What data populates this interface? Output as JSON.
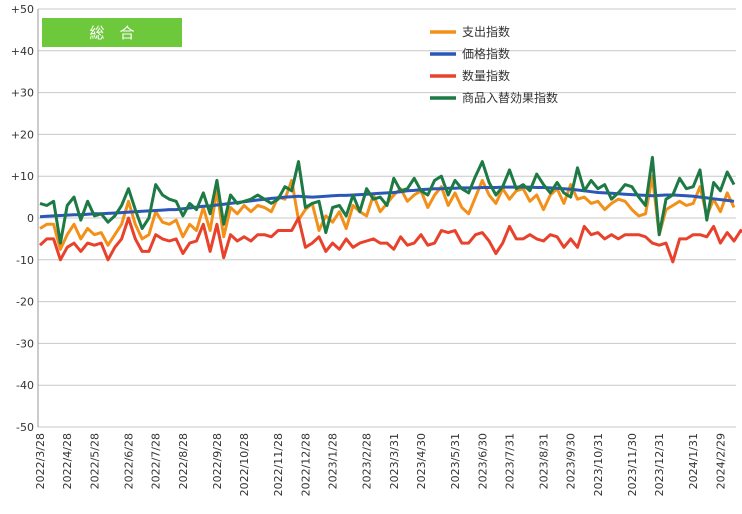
{
  "badge": {
    "text": "総　合",
    "color": "#6ec83c"
  },
  "chart_data": {
    "type": "line",
    "ylim": [
      -50,
      50
    ],
    "yticks": [
      {
        "value": 50,
        "label": "+50"
      },
      {
        "value": 40,
        "label": "+40"
      },
      {
        "value": 30,
        "label": "+30"
      },
      {
        "value": 20,
        "label": "+20"
      },
      {
        "value": 10,
        "label": "+10"
      },
      {
        "value": 0,
        "label": "0"
      },
      {
        "value": -10,
        "label": "-10"
      },
      {
        "value": -20,
        "label": "-20"
      },
      {
        "value": -30,
        "label": "-30"
      },
      {
        "value": -40,
        "label": "-40"
      },
      {
        "value": -50,
        "label": "-50"
      }
    ],
    "xticks": [
      {
        "index": 0,
        "label": "2022/3/28"
      },
      {
        "index": 4,
        "label": "2022/4/28"
      },
      {
        "index": 8,
        "label": "2022/5/28"
      },
      {
        "index": 13,
        "label": "2022/6/28"
      },
      {
        "index": 17,
        "label": "2022/7/28"
      },
      {
        "index": 21,
        "label": "2022/8/28"
      },
      {
        "index": 26,
        "label": "2022/9/28"
      },
      {
        "index": 30,
        "label": "2022/10/28"
      },
      {
        "index": 35,
        "label": "2022/11/28"
      },
      {
        "index": 39,
        "label": "2022/12/28"
      },
      {
        "index": 43,
        "label": "2023/1/28"
      },
      {
        "index": 48,
        "label": "2023/2/28"
      },
      {
        "index": 52,
        "label": "2023/3/31"
      },
      {
        "index": 56,
        "label": "2023/4/30"
      },
      {
        "index": 61,
        "label": "2023/5/31"
      },
      {
        "index": 65,
        "label": "2023/6/30"
      },
      {
        "index": 69,
        "label": "2023/7/31"
      },
      {
        "index": 74,
        "label": "2023/8/31"
      },
      {
        "index": 78,
        "label": "2023/9/30"
      },
      {
        "index": 82,
        "label": "2023/10/31"
      },
      {
        "index": 87,
        "label": "2023/11/30"
      },
      {
        "index": 91,
        "label": "2023/12/31"
      },
      {
        "index": 96,
        "label": "2024/1/31"
      },
      {
        "index": 100,
        "label": "2024/2/29"
      }
    ],
    "legend_position": "top-right",
    "series": [
      {
        "name": "支出指数",
        "color": "#f39019",
        "values": [
          -2.5,
          -1.5,
          -1.5,
          -7.5,
          -4,
          -1.5,
          -5,
          -2.5,
          -4,
          -3.5,
          -6.5,
          -4,
          -1.5,
          4,
          -1.5,
          -5,
          -4,
          1.5,
          -1,
          -1.5,
          -0.5,
          -4.5,
          -1.5,
          -3,
          2.5,
          -3,
          6.5,
          -4.5,
          2.5,
          1,
          3,
          1.5,
          3,
          2.5,
          1.5,
          5,
          4.5,
          9,
          -0.5,
          2,
          3.5,
          -3,
          0.5,
          -1,
          1.5,
          -2.5,
          3,
          1.5,
          0.5,
          5.5,
          1.5,
          3.5,
          5.5,
          7,
          4,
          5.5,
          6.5,
          2.5,
          5.5,
          7.5,
          3,
          6,
          2.5,
          1,
          5,
          9,
          5.5,
          3.5,
          7,
          4.5,
          6.5,
          7,
          4,
          5.5,
          2,
          5.5,
          7,
          3.5,
          8,
          4.5,
          5,
          3.5,
          4,
          2,
          3.5,
          4.5,
          4,
          2,
          0.5,
          1,
          10,
          -4,
          2,
          3,
          4,
          3,
          3.5,
          7.5,
          0.5,
          4.5,
          1.5,
          6,
          2.5
        ]
      },
      {
        "name": "価格指数",
        "color": "#2a57b8",
        "values": [
          0.3,
          0.4,
          0.5,
          0.6,
          0.7,
          0.8,
          0.8,
          0.9,
          1,
          1,
          1.1,
          1.2,
          1.3,
          1.4,
          1.5,
          1.6,
          1.7,
          1.8,
          1.9,
          2,
          2,
          2.2,
          2.4,
          2.6,
          2.8,
          2.9,
          3.1,
          3.3,
          3.5,
          3.7,
          3.9,
          4.1,
          4.3,
          4.5,
          4.7,
          4.8,
          5,
          5.1,
          5.2,
          5.1,
          5,
          5.1,
          5.2,
          5.3,
          5.4,
          5.4,
          5.5,
          5.6,
          5.7,
          5.8,
          5.9,
          6,
          6.1,
          6.3,
          6.5,
          6.6,
          6.8,
          6.9,
          7,
          7,
          7.1,
          7.1,
          7.2,
          7.2,
          7.2,
          7.3,
          7.3,
          7.3,
          7.4,
          7.4,
          7.4,
          7.4,
          7.4,
          7.3,
          7.3,
          7.2,
          7.1,
          7,
          6.9,
          6.7,
          6.5,
          6.3,
          6.1,
          6,
          5.9,
          5.8,
          5.7,
          5.6,
          5.5,
          5.4,
          5.3,
          5.4,
          5.5,
          5.5,
          5.4,
          5.3,
          5.2,
          5,
          4.8,
          4.6,
          4.4,
          4.2,
          4
        ]
      },
      {
        "name": "数量指数",
        "color": "#e8412c",
        "values": [
          -6.5,
          -5,
          -5,
          -10,
          -7,
          -6,
          -8,
          -6,
          -6.5,
          -6,
          -10,
          -7,
          -5,
          0,
          -5,
          -8,
          -8,
          -4,
          -5,
          -5.5,
          -5,
          -8.5,
          -6,
          -5.5,
          -1.5,
          -8,
          -1.5,
          -9.5,
          -4,
          -5.5,
          -4.5,
          -5.5,
          -4,
          -4,
          -4.5,
          -3,
          -3,
          -3,
          0,
          -7,
          -6,
          -4.5,
          -8,
          -6,
          -7.5,
          -5,
          -7,
          -6,
          -5.5,
          -5,
          -6,
          -6,
          -7.5,
          -4.5,
          -6.5,
          -6,
          -4,
          -6.5,
          -6,
          -3,
          -3.5,
          -3,
          -6,
          -6,
          -4,
          -3.5,
          -5.5,
          -8.5,
          -6,
          -2,
          -5,
          -5,
          -4,
          -5,
          -5.5,
          -4,
          -4.5,
          -7,
          -5,
          -7,
          -2,
          -4,
          -3.5,
          -5,
          -4,
          -5,
          -4,
          -4,
          -4,
          -4.5,
          -6,
          -6.5,
          -6,
          -10.5,
          -5,
          -5,
          -4,
          -4,
          -4.5,
          -2,
          -6,
          -3.5,
          -5.5,
          -3,
          -4
        ]
      },
      {
        "name": "商品入替効果指数",
        "color": "#1d7a44",
        "values": [
          3.5,
          3,
          4,
          -6,
          3,
          5,
          -0.5,
          4,
          0.5,
          1,
          -1,
          0.5,
          3,
          7,
          2,
          -2.5,
          0,
          8,
          5.5,
          4.5,
          4,
          0.5,
          3.5,
          2,
          6,
          1,
          9,
          -1.5,
          5.5,
          3.5,
          4,
          4.5,
          5.5,
          4.5,
          3.5,
          4.5,
          7.5,
          6.5,
          13.5,
          2.5,
          3.5,
          4,
          -3.5,
          2.5,
          3,
          0.5,
          5.5,
          1.5,
          7,
          4.5,
          5,
          3,
          9.5,
          6.5,
          7,
          9.5,
          6.5,
          5.5,
          9,
          10,
          5.5,
          9,
          7,
          6,
          10,
          13.5,
          8.5,
          5.5,
          7.5,
          11.5,
          7,
          8,
          6.5,
          10.5,
          8,
          6,
          8.5,
          6,
          5,
          12,
          6.5,
          9,
          7,
          8,
          4.5,
          6,
          8,
          7.5,
          5,
          3,
          14.5,
          -4,
          4.5,
          5.5,
          9.5,
          7,
          7.5,
          11.5,
          -0.5,
          8.5,
          6.5,
          11,
          8
        ]
      }
    ]
  }
}
